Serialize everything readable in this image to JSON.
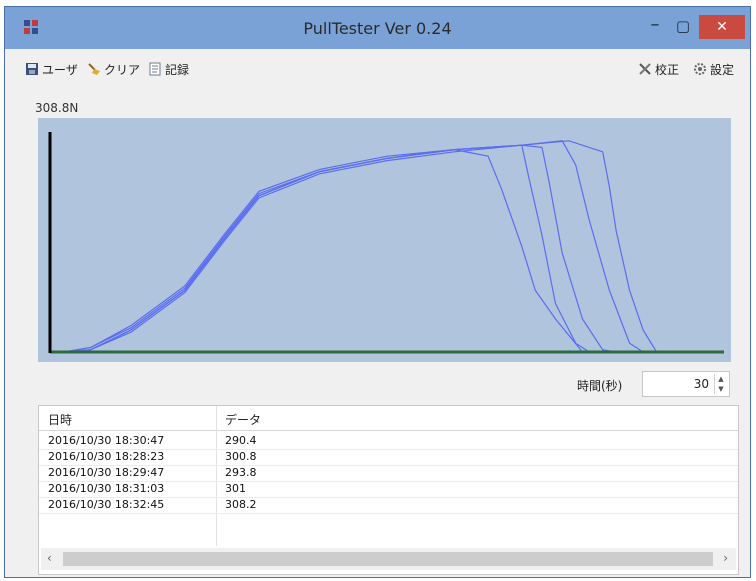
{
  "window": {
    "title": "PullTester Ver 0.24"
  },
  "titlebar": {
    "minimize_label": "–",
    "maximize_label": "▢",
    "close_label": "✕"
  },
  "toolbar": {
    "save_label": "ユーザ",
    "clear_label": "クリア",
    "report_label": "記録",
    "calibrate_label": "校正",
    "settings_label": "設定"
  },
  "readout": {
    "value": "308.8N"
  },
  "chart_data": {
    "type": "line",
    "background": "#b0c4de",
    "line_color": "#5a6cf0",
    "baseline_color": "#2e6b3a",
    "axis_color": "#000000",
    "grid": false,
    "x_range": [
      0,
      100
    ],
    "y_range": [
      0,
      100
    ],
    "series": [
      {
        "values": [
          [
            2,
            0
          ],
          [
            6,
            1
          ],
          [
            12,
            10
          ],
          [
            20,
            28
          ],
          [
            26,
            52
          ],
          [
            31,
            71
          ],
          [
            40,
            82
          ],
          [
            50,
            88
          ],
          [
            60,
            92
          ],
          [
            65,
            89
          ],
          [
            67,
            74
          ],
          [
            70,
            48
          ],
          [
            72,
            28
          ],
          [
            75,
            15
          ],
          [
            79,
            0
          ],
          [
            100,
            0
          ]
        ]
      },
      {
        "values": [
          [
            2,
            0
          ],
          [
            6,
            2
          ],
          [
            12,
            12
          ],
          [
            20,
            30
          ],
          [
            26,
            54
          ],
          [
            31,
            73
          ],
          [
            40,
            83
          ],
          [
            50,
            89
          ],
          [
            60,
            92
          ],
          [
            70,
            94
          ],
          [
            71,
            80
          ],
          [
            73,
            53
          ],
          [
            75,
            22
          ],
          [
            78,
            4
          ],
          [
            80,
            0
          ],
          [
            100,
            0
          ]
        ]
      },
      {
        "values": [
          [
            2,
            0
          ],
          [
            6,
            1
          ],
          [
            12,
            9
          ],
          [
            20,
            27
          ],
          [
            26,
            51
          ],
          [
            31,
            70
          ],
          [
            40,
            81
          ],
          [
            50,
            87
          ],
          [
            60,
            91
          ],
          [
            70,
            94
          ],
          [
            73,
            93
          ],
          [
            74,
            78
          ],
          [
            76,
            45
          ],
          [
            79,
            15
          ],
          [
            82,
            1
          ],
          [
            84,
            0
          ],
          [
            100,
            0
          ]
        ]
      },
      {
        "values": [
          [
            2,
            0
          ],
          [
            6,
            2
          ],
          [
            12,
            11
          ],
          [
            20,
            29
          ],
          [
            26,
            53
          ],
          [
            31,
            72
          ],
          [
            40,
            82
          ],
          [
            50,
            88
          ],
          [
            60,
            92
          ],
          [
            70,
            94
          ],
          [
            76,
            96
          ],
          [
            78,
            85
          ],
          [
            80,
            60
          ],
          [
            83,
            28
          ],
          [
            86,
            4
          ],
          [
            88,
            0
          ],
          [
            100,
            0
          ]
        ]
      },
      {
        "values": [
          [
            2,
            0
          ],
          [
            6,
            1
          ],
          [
            12,
            10
          ],
          [
            20,
            28
          ],
          [
            26,
            52
          ],
          [
            31,
            71
          ],
          [
            40,
            82
          ],
          [
            50,
            88
          ],
          [
            60,
            92
          ],
          [
            70,
            94
          ],
          [
            77,
            96
          ],
          [
            82,
            91
          ],
          [
            83,
            75
          ],
          [
            84,
            55
          ],
          [
            86,
            28
          ],
          [
            88,
            10
          ],
          [
            90,
            0
          ],
          [
            100,
            0
          ]
        ]
      }
    ]
  },
  "time_control": {
    "label": "時間(秒)",
    "value": "30"
  },
  "table": {
    "columns": [
      "日時",
      "データ"
    ],
    "rows": [
      {
        "datetime": "2016/10/30 18:30:47",
        "value": "290.4"
      },
      {
        "datetime": "2016/10/30 18:28:23",
        "value": "300.8"
      },
      {
        "datetime": "2016/10/30 18:29:47",
        "value": "293.8"
      },
      {
        "datetime": "2016/10/30 18:31:03",
        "value": "301"
      },
      {
        "datetime": "2016/10/30 18:32:45",
        "value": "308.2"
      }
    ]
  }
}
